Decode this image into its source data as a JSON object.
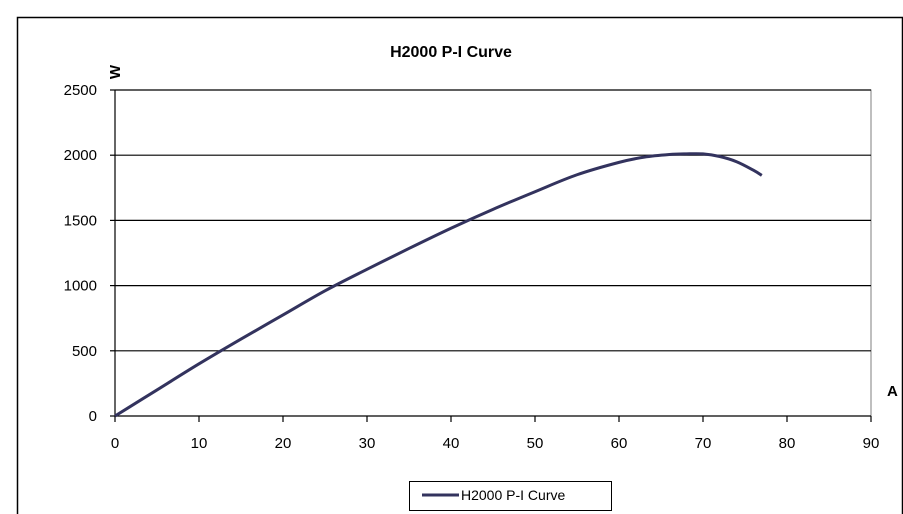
{
  "chart_data": {
    "type": "line",
    "title": "H2000 P-I Curve",
    "xlabel": "A",
    "ylabel": "W",
    "xlim": [
      0,
      90
    ],
    "ylim": [
      0,
      2500
    ],
    "x_ticks": [
      0,
      10,
      20,
      30,
      40,
      50,
      60,
      70,
      80,
      90
    ],
    "y_ticks": [
      0,
      500,
      1000,
      1500,
      2000,
      2500
    ],
    "grid": "horizontal",
    "legend_position": "bottom",
    "series": [
      {
        "name": "H2000 P-I Curve",
        "color": "#33335e",
        "x": [
          0,
          5,
          10,
          15,
          20,
          25,
          30,
          35,
          40,
          45,
          50,
          55,
          60,
          63,
          66,
          68,
          70,
          72,
          74,
          76,
          77
        ],
        "y": [
          0,
          200,
          400,
          590,
          775,
          960,
          1125,
          1285,
          1440,
          1585,
          1720,
          1850,
          1945,
          1985,
          2005,
          2010,
          2010,
          1990,
          1950,
          1885,
          1845
        ]
      }
    ]
  }
}
